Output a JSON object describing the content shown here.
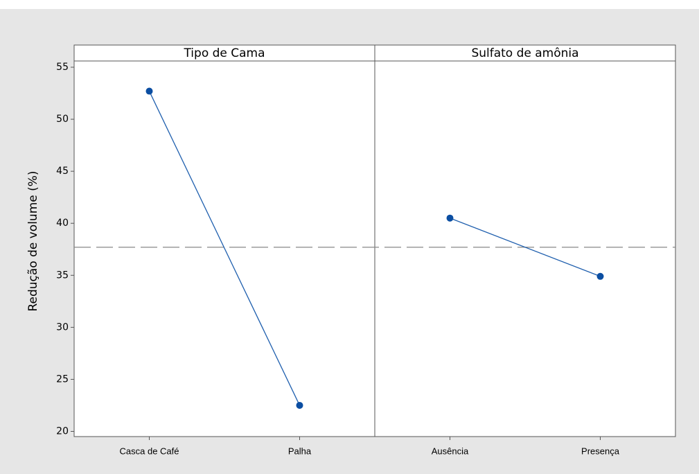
{
  "chart_data": {
    "type": "line",
    "ylabel": "Redução de volume (%)",
    "ylim": [
      19.5,
      55.6
    ],
    "yticks": [
      20,
      25,
      30,
      35,
      40,
      45,
      50,
      55
    ],
    "mean_line": 37.7,
    "color": "#1f5fae",
    "panels": [
      {
        "title": "Tipo de Cama",
        "categories": [
          "Casca de Café",
          "Palha"
        ],
        "values": [
          52.7,
          22.5
        ]
      },
      {
        "title": "Sulfato de amônia",
        "categories": [
          "Ausência",
          "Presença"
        ],
        "values": [
          40.5,
          34.9
        ]
      }
    ]
  }
}
